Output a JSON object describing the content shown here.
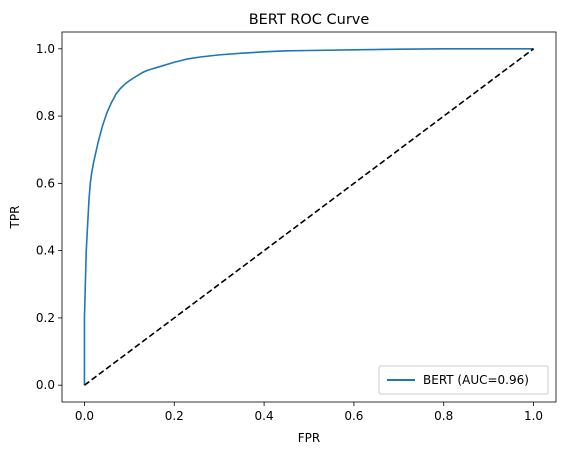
{
  "chart_data": {
    "type": "line",
    "title": "BERT ROC Curve",
    "xlabel": "FPR",
    "ylabel": "TPR",
    "xlim": [
      -0.05,
      1.05
    ],
    "ylim": [
      -0.05,
      1.05
    ],
    "xticks": [
      0.0,
      0.2,
      0.4,
      0.6,
      0.8,
      1.0
    ],
    "yticks": [
      0.0,
      0.2,
      0.4,
      0.6,
      0.8,
      1.0
    ],
    "xtick_labels": [
      "0.0",
      "0.2",
      "0.4",
      "0.6",
      "0.8",
      "1.0"
    ],
    "ytick_labels": [
      "0.0",
      "0.2",
      "0.4",
      "0.6",
      "0.8",
      "1.0"
    ],
    "grid": false,
    "legend_position": "lower-right",
    "series": [
      {
        "name": "BERT (AUC=0.96)",
        "color": "#1f77b4",
        "style": "solid",
        "x": [
          0.0,
          0.0,
          0.002,
          0.004,
          0.006,
          0.008,
          0.01,
          0.013,
          0.016,
          0.02,
          0.025,
          0.03,
          0.035,
          0.04,
          0.045,
          0.05,
          0.055,
          0.06,
          0.065,
          0.07,
          0.08,
          0.09,
          0.1,
          0.11,
          0.12,
          0.13,
          0.14,
          0.15,
          0.17,
          0.2,
          0.23,
          0.26,
          0.3,
          0.35,
          0.4,
          0.45,
          0.5,
          0.6,
          0.7,
          0.8,
          0.9,
          1.0
        ],
        "y": [
          0.0,
          0.2,
          0.3,
          0.4,
          0.45,
          0.5,
          0.55,
          0.6,
          0.63,
          0.66,
          0.69,
          0.72,
          0.745,
          0.77,
          0.79,
          0.81,
          0.825,
          0.84,
          0.852,
          0.865,
          0.882,
          0.895,
          0.905,
          0.914,
          0.922,
          0.93,
          0.936,
          0.94,
          0.948,
          0.96,
          0.97,
          0.976,
          0.982,
          0.987,
          0.991,
          0.994,
          0.995,
          0.997,
          0.999,
          1.0,
          1.0,
          1.0
        ]
      },
      {
        "color": "#000000",
        "style": "dashed",
        "x": [
          0.0,
          1.0
        ],
        "y": [
          0.0,
          1.0
        ]
      }
    ]
  }
}
